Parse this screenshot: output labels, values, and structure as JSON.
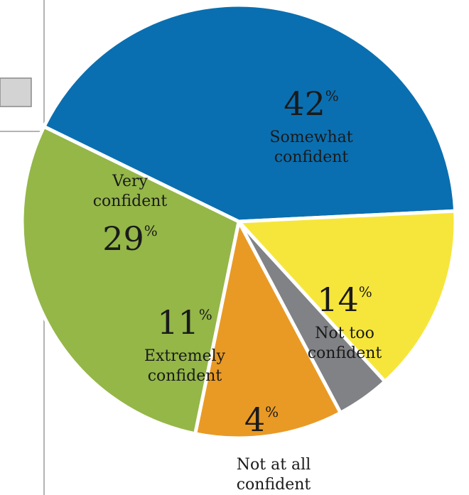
{
  "chart_data": {
    "type": "pie",
    "title": "",
    "slices": [
      {
        "label_lines": [
          "Somewhat",
          "confident"
        ],
        "value": 42,
        "pct_text": "42",
        "pct_symbol": "%",
        "color": "#0a6fb0",
        "label_inside": true
      },
      {
        "label_lines": [
          "Not too",
          "confident"
        ],
        "value": 14,
        "pct_text": "14",
        "pct_symbol": "%",
        "color": "#f6e63b",
        "label_inside": true
      },
      {
        "label_lines": [
          "Not at all",
          "confident"
        ],
        "value": 4,
        "pct_text": "4",
        "pct_symbol": "%",
        "color": "#808285",
        "label_inside": false
      },
      {
        "label_lines": [
          "Extremely",
          "confident"
        ],
        "value": 11,
        "pct_text": "11",
        "pct_symbol": "%",
        "color": "#e99a25",
        "label_inside": true
      },
      {
        "label_lines": [
          "Very",
          "confident"
        ],
        "value": 29,
        "pct_text": "29",
        "pct_symbol": "%",
        "color": "#94b748",
        "label_inside": true
      }
    ]
  }
}
